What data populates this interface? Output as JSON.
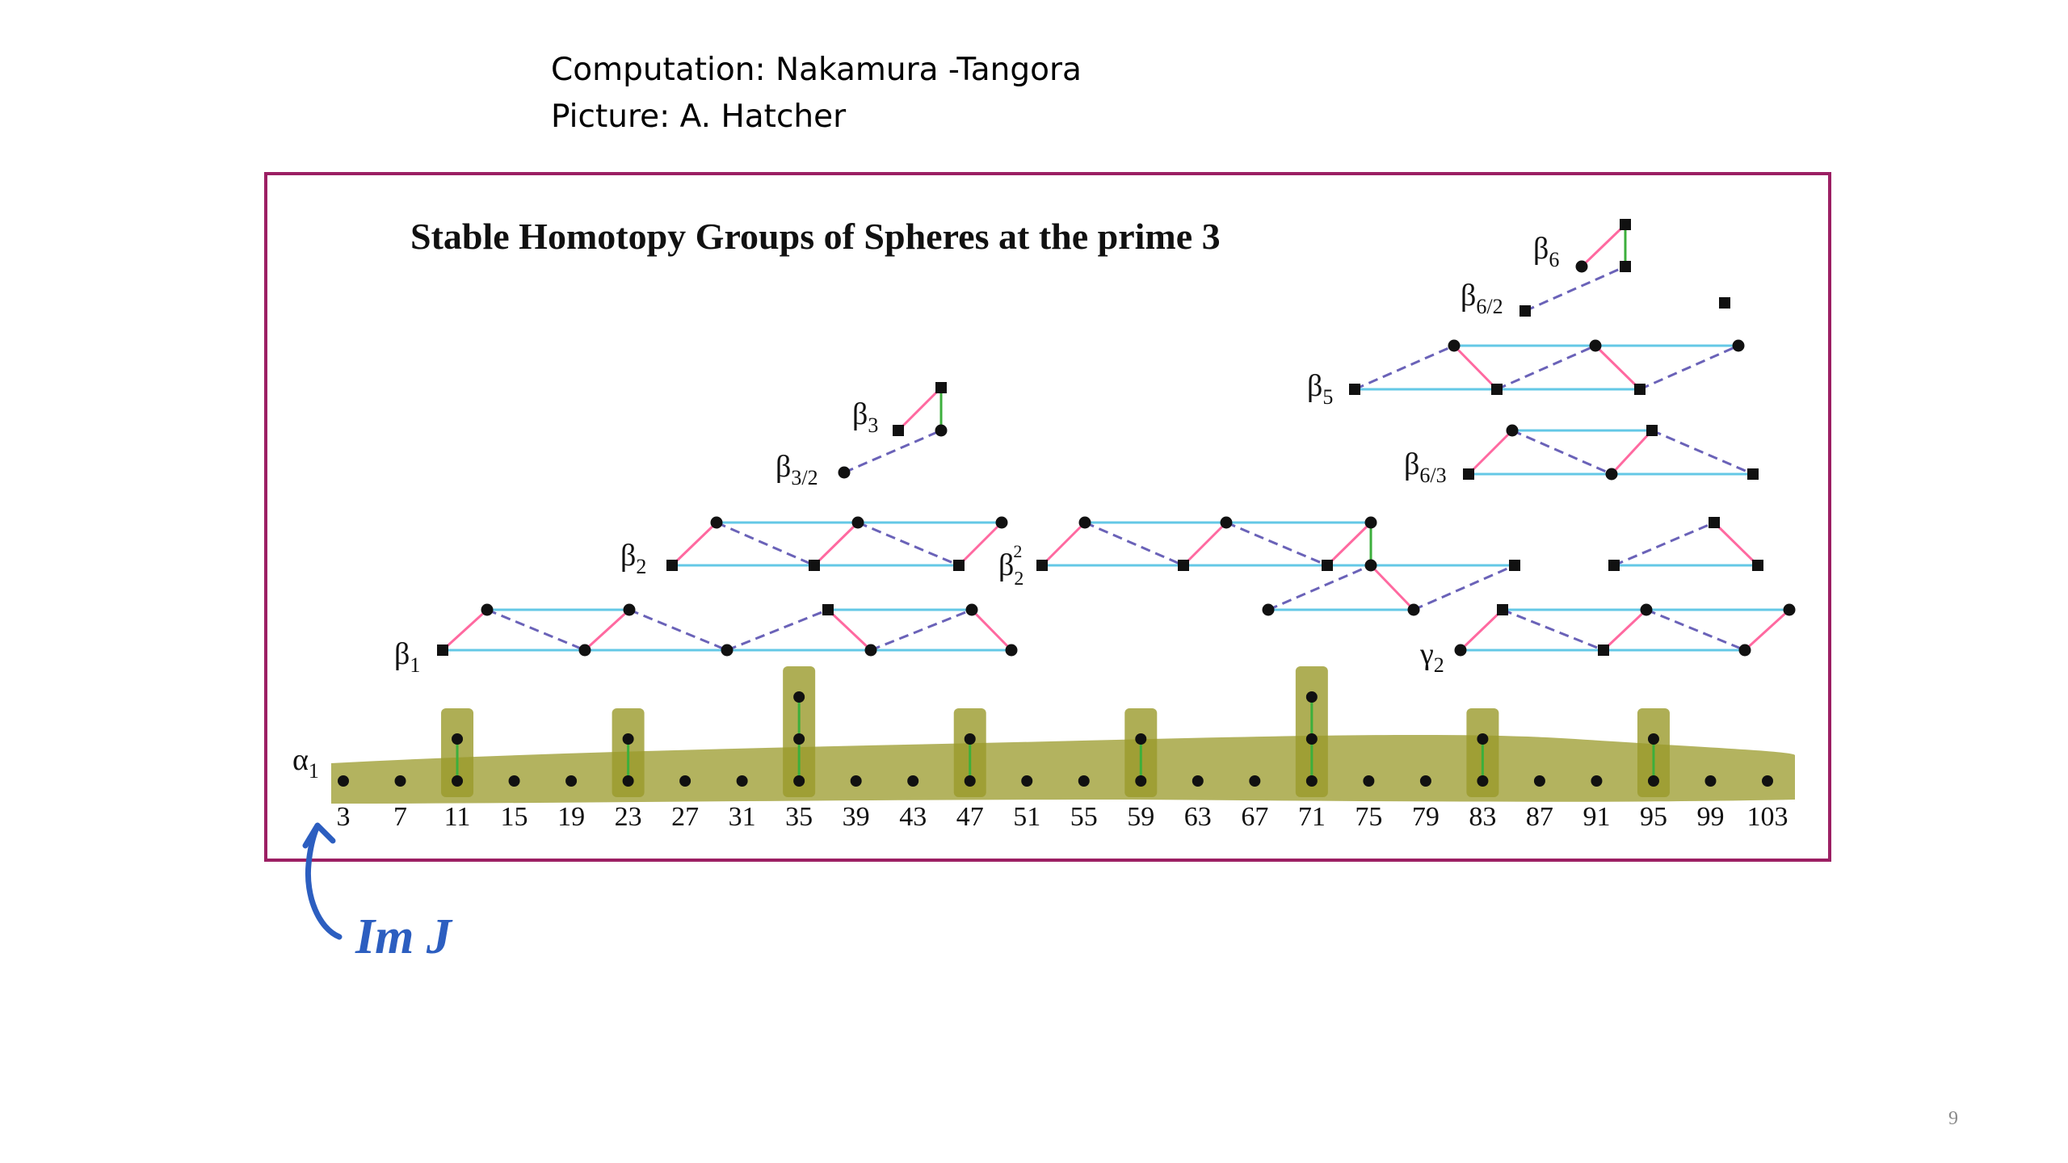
{
  "slide": {
    "credit_computation": "Computation: Nakamura -Tangora",
    "credit_picture": "Picture: A. Hatcher",
    "page_number": "9"
  },
  "figure": {
    "title": "Stable Homotopy Groups of Spheres at the prime  3",
    "frame_color": "#9c1f63",
    "colors": {
      "h0_line": "#ff69a0",
      "cyan_line": "#64c8e6",
      "dashed_line": "#6a62b8",
      "vertical_line": "#3caf3c",
      "highlight": "#9a9a2a",
      "annotation": "#2c5ec0"
    },
    "x_ticks": [
      "3",
      "7",
      "11",
      "15",
      "19",
      "23",
      "27",
      "31",
      "35",
      "39",
      "43",
      "47",
      "51",
      "55",
      "59",
      "63",
      "67",
      "71",
      "75",
      "79",
      "83",
      "87",
      "91",
      "95",
      "99",
      "103"
    ],
    "labels": {
      "alpha1": "α",
      "alpha1_sub": "1",
      "beta1": "β",
      "beta1_sub": "1",
      "beta2": "β",
      "beta2_sub": "2",
      "beta2sq": "β",
      "beta2sq_sub": "2",
      "beta2sq_sup": "2",
      "beta3": "β",
      "beta3_sub": "3",
      "beta3_2": "β",
      "beta3_2_sub": "3/2",
      "beta5": "β",
      "beta5_sub": "5",
      "beta6": "β",
      "beta6_sub": "6",
      "beta6_2": "β",
      "beta6_2_sub": "6/2",
      "beta6_3": "β",
      "beta6_3_sub": "6/3",
      "gamma2": "γ",
      "gamma2_sub": "2"
    },
    "annotation": "Im J",
    "image_of_J_dots": [
      3,
      7,
      11,
      15,
      19,
      23,
      27,
      31,
      35,
      39,
      43,
      47,
      51,
      55,
      59,
      63,
      67,
      71,
      75,
      79,
      83,
      87,
      91,
      95,
      99,
      103
    ],
    "image_of_J_towers": [
      {
        "stem": 11,
        "height": 2
      },
      {
        "stem": 23,
        "height": 2
      },
      {
        "stem": 35,
        "height": 3
      },
      {
        "stem": 47,
        "height": 2
      },
      {
        "stem": 59,
        "height": 2
      },
      {
        "stem": 71,
        "height": 3
      },
      {
        "stem": 83,
        "height": 2
      },
      {
        "stem": 95,
        "height": 2
      }
    ]
  }
}
